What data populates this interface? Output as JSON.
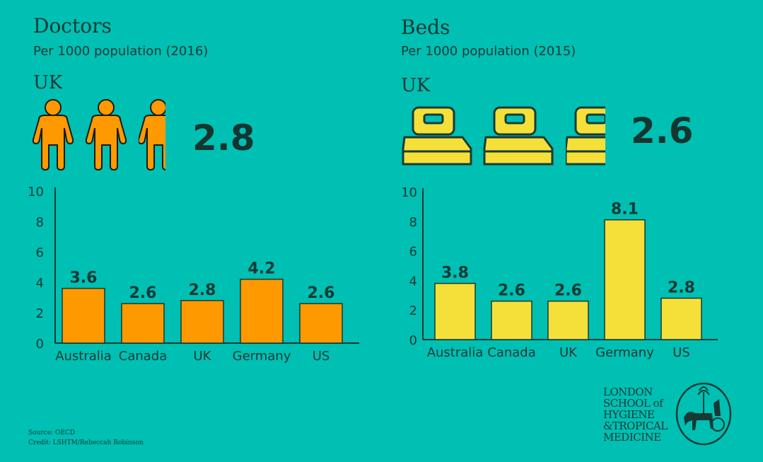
{
  "chart_data": [
    {
      "type": "bar",
      "title": "Doctors",
      "subtitle": "Per 1000 population (2016)",
      "highlight_label": "UK",
      "highlight_value": "2.8",
      "categories": [
        "Australia",
        "Canada",
        "UK",
        "Germany",
        "US"
      ],
      "values": [
        3.6,
        2.6,
        2.8,
        4.2,
        2.6
      ],
      "value_labels": [
        "3.6",
        "2.6",
        "2.8",
        "4.2",
        "2.6"
      ],
      "yticks": [
        "0",
        "2",
        "4",
        "6",
        "8",
        "10"
      ],
      "ylim": [
        0,
        10
      ],
      "xlabel": "",
      "ylabel": "",
      "grid": false,
      "color": "#ff9900"
    },
    {
      "type": "bar",
      "title": "Beds",
      "subtitle": "Per 1000 population (2015)",
      "highlight_label": "UK",
      "highlight_value": "2.6",
      "categories": [
        "Australia",
        "Canada",
        "UK",
        "Germany",
        "US"
      ],
      "values": [
        3.8,
        2.6,
        2.6,
        8.1,
        2.8
      ],
      "value_labels": [
        "3.8",
        "2.6",
        "2.6",
        "8.1",
        "2.8"
      ],
      "yticks": [
        "0",
        "2",
        "4",
        "6",
        "8",
        "10"
      ],
      "ylim": [
        0,
        10
      ],
      "xlabel": "",
      "ylabel": "",
      "grid": false,
      "color": "#f5e03a"
    }
  ],
  "footer": {
    "source": "Source: OECD",
    "credit": "Credit: LSHTM/Rebeccah Robinson"
  },
  "logo": {
    "lines": [
      "LONDON",
      "SCHOOL of",
      "HYGIENE",
      "&TROPICAL",
      "MEDICINE"
    ]
  },
  "colors": {
    "background": "#00bfb3",
    "text": "#153a35"
  }
}
